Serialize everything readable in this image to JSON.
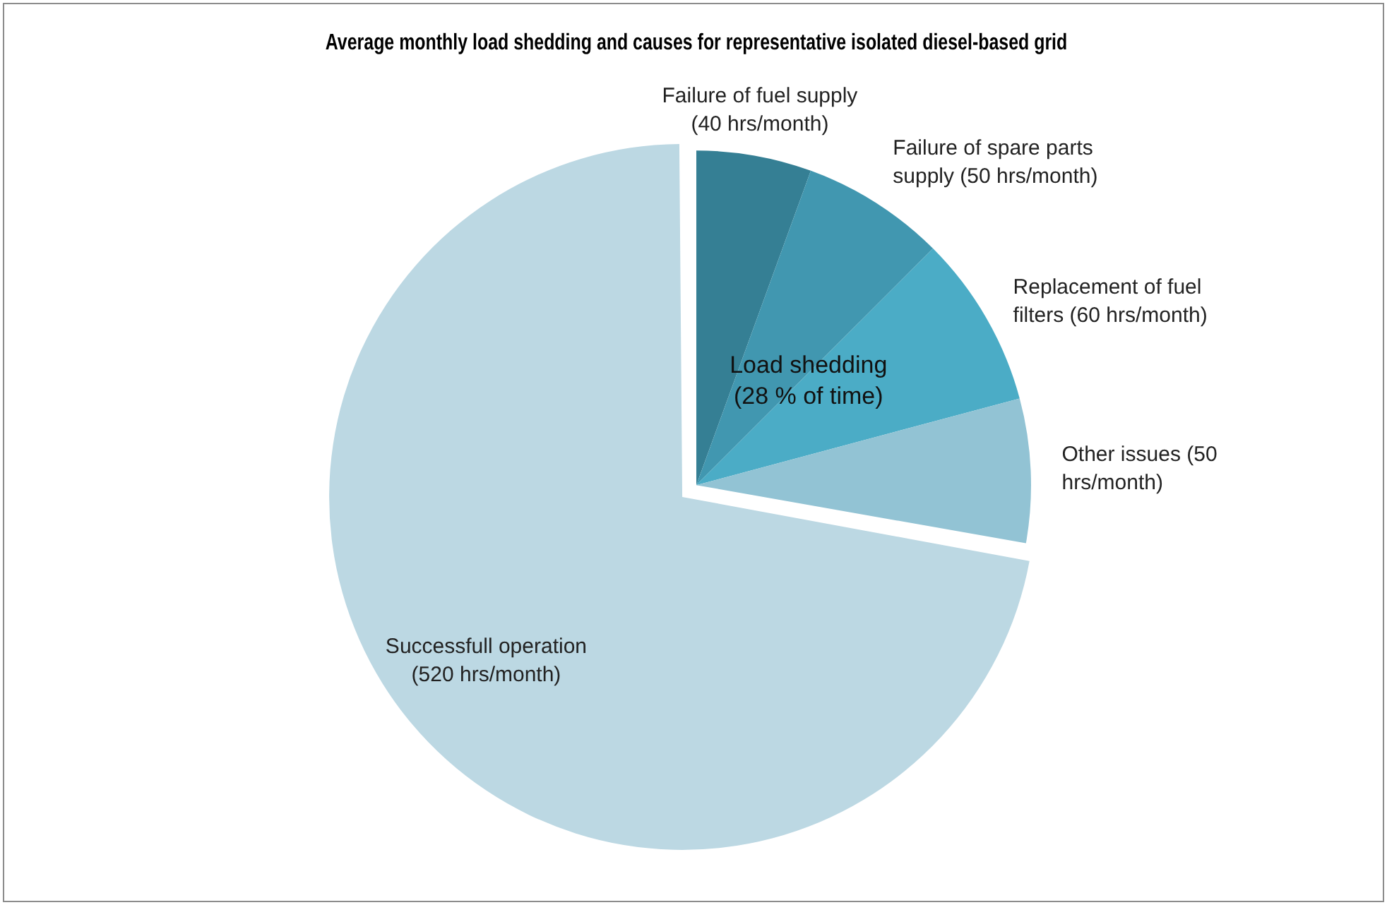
{
  "chart_data": {
    "type": "pie",
    "title": "Average monthly load shedding and causes for representative isolated diesel-based grid",
    "categories": [
      "Failure of fuel supply (40 hrs/month)",
      "Failure of spare parts supply (50 hrs/month)",
      "Replacement of fuel filters (60 hrs/month)",
      "Other issues (50 hrs/month)",
      "Successfull operation (520 hrs/month)"
    ],
    "values": [
      40,
      50,
      60,
      50,
      520
    ],
    "colors": [
      "#357f94",
      "#4197b0",
      "#4bacc6",
      "#92c3d4",
      "#bcd8e3"
    ],
    "annotations": [
      "Load shedding (28 % of time)"
    ],
    "legend": false
  }
}
